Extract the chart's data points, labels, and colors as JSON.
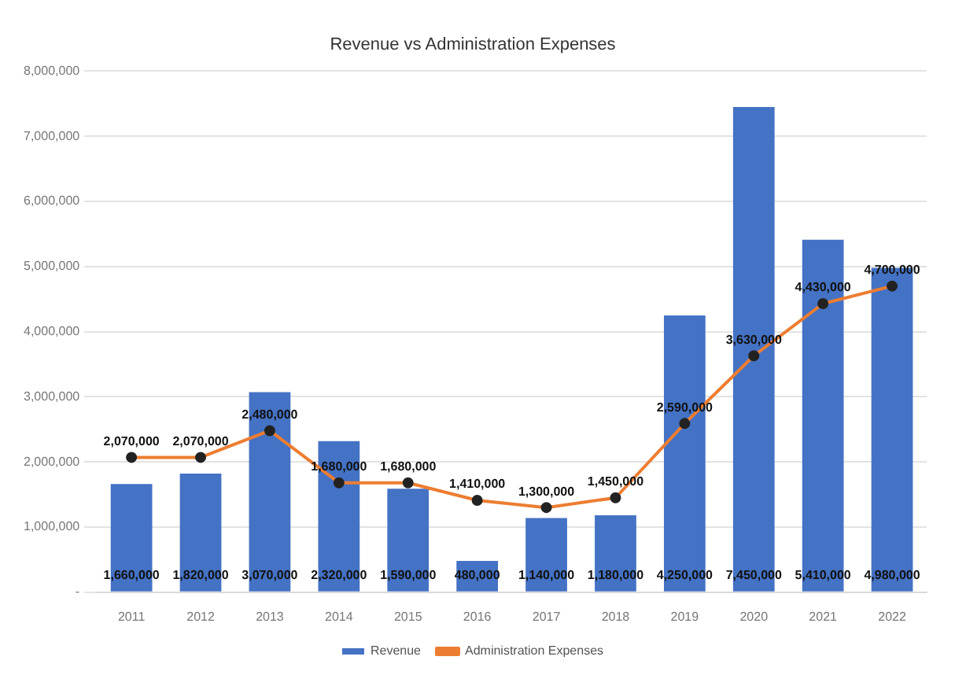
{
  "chart_data": {
    "type": "bar",
    "title": "Revenue vs Administration Expenses",
    "categories": [
      "2011",
      "2012",
      "2013",
      "2014",
      "2015",
      "2016",
      "2017",
      "2018",
      "2019",
      "2020",
      "2021",
      "2022"
    ],
    "series": [
      {
        "name": "Revenue",
        "color": "#4472c4",
        "values": [
          1660000,
          1820000,
          3070000,
          2320000,
          1590000,
          480000,
          1140000,
          1180000,
          4250000,
          7450000,
          5410000,
          4980000
        ],
        "value_labels": [
          "1,660,000",
          "1,820,000",
          "3,070,000",
          "2,320,000",
          "1,590,000",
          "480,000",
          "1,140,000",
          "1,180,000",
          "4,250,000",
          "7,450,000",
          "5,410,000",
          "4,980,000"
        ]
      },
      {
        "name": "Administration Expenses",
        "type": "line",
        "color": "#ed7d31",
        "values": [
          2070000,
          2070000,
          2480000,
          1680000,
          1680000,
          1410000,
          1300000,
          1450000,
          2590000,
          3630000,
          4430000,
          4700000
        ],
        "value_labels": [
          "2,070,000",
          "2,070,000",
          "2,480,000",
          "1,680,000",
          "1,680,000",
          "1,410,000",
          "1,300,000",
          "1,450,000",
          "2,590,000",
          "3,630,000",
          "4,430,000",
          "4,700,000"
        ]
      }
    ],
    "ylim": [
      0,
      8000000
    ],
    "yticks": [
      {
        "value": 0,
        "label": "-"
      },
      {
        "value": 1000000,
        "label": "1,000,000"
      },
      {
        "value": 2000000,
        "label": "2,000,000"
      },
      {
        "value": 3000000,
        "label": "3,000,000"
      },
      {
        "value": 4000000,
        "label": "4,000,000"
      },
      {
        "value": 5000000,
        "label": "5,000,000"
      },
      {
        "value": 6000000,
        "label": "6,000,000"
      },
      {
        "value": 7000000,
        "label": "7,000,000"
      },
      {
        "value": 8000000,
        "label": "8,000,000"
      }
    ],
    "grid": "y",
    "legend": "bottom",
    "marker": "circle",
    "line_style": "solid"
  }
}
